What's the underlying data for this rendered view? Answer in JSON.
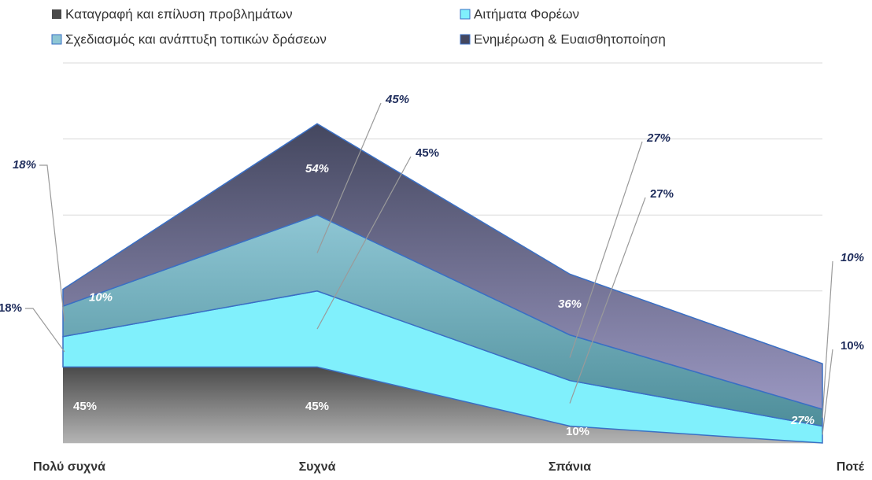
{
  "chart_data": {
    "type": "stacked_area",
    "categories": [
      "Πολύ συχνά",
      "Συχνά",
      "Σπάνια",
      "Ποτέ"
    ],
    "series": [
      {
        "name": "Καταγραφή και επίλυση προβλημάτων",
        "color": "#6e6e6e",
        "values": [
          45,
          45,
          10,
          0
        ],
        "value_labels": [
          "45%",
          "45%",
          "10%",
          null
        ]
      },
      {
        "name": "Αιτήματα Φορέων",
        "color": "#80f0fc",
        "values": [
          18,
          45,
          27,
          10
        ],
        "value_labels": [
          "18%",
          "45%",
          "27%",
          "10%"
        ]
      },
      {
        "name": "Σχεδιασμός και ανάπτυξη τοπικών δράσεων",
        "color": "#6aaab8",
        "values": [
          18,
          45,
          27,
          10
        ],
        "value_labels": [
          "18%",
          "45%",
          "27%",
          "10%"
        ]
      },
      {
        "name": "Ενημέρωση & Ευαισθητοποίηση",
        "color": "#5e5f85",
        "values": [
          10,
          54,
          36,
          27
        ],
        "value_labels": [
          "10%",
          "54%",
          "36%",
          "27%"
        ]
      }
    ],
    "ylim": [
      0,
      225
    ],
    "yticks": [
      0,
      45,
      90,
      135,
      180,
      225
    ],
    "grid": true,
    "legend": "top"
  }
}
